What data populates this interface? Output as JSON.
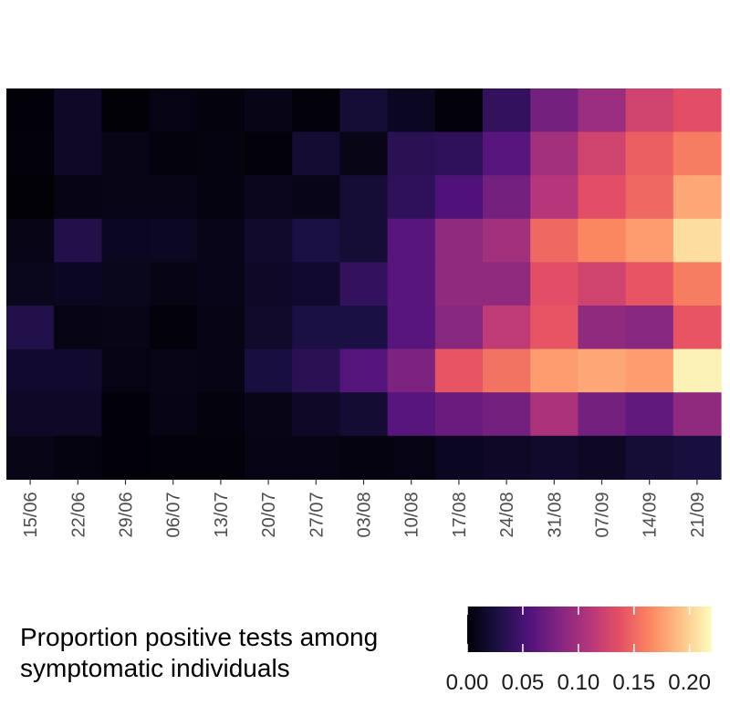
{
  "chart_data": {
    "type": "heatmap",
    "title": "",
    "xlabel": "",
    "ylabel": "",
    "x_categories": [
      "15/06",
      "22/06",
      "29/06",
      "06/07",
      "13/07",
      "20/07",
      "27/07",
      "03/08",
      "10/08",
      "17/08",
      "24/08",
      "31/08",
      "07/09",
      "14/09",
      "21/09"
    ],
    "rows": 9,
    "values": [
      [
        0.002,
        0.015,
        0.001,
        0.006,
        0.004,
        0.008,
        0.003,
        0.022,
        0.012,
        0.003,
        0.04,
        0.075,
        0.095,
        0.125,
        0.135
      ],
      [
        0.003,
        0.015,
        0.008,
        0.004,
        0.005,
        0.003,
        0.02,
        0.008,
        0.035,
        0.038,
        0.06,
        0.1,
        0.125,
        0.145,
        0.16
      ],
      [
        0.001,
        0.007,
        0.008,
        0.008,
        0.005,
        0.011,
        0.009,
        0.022,
        0.038,
        0.055,
        0.075,
        0.11,
        0.135,
        0.15,
        0.18
      ],
      [
        0.008,
        0.03,
        0.012,
        0.013,
        0.009,
        0.017,
        0.027,
        0.022,
        0.06,
        0.09,
        0.1,
        0.15,
        0.165,
        0.175,
        0.205
      ],
      [
        0.01,
        0.012,
        0.01,
        0.007,
        0.009,
        0.015,
        0.018,
        0.04,
        0.06,
        0.09,
        0.09,
        0.135,
        0.125,
        0.14,
        0.16
      ],
      [
        0.03,
        0.006,
        0.008,
        0.003,
        0.007,
        0.016,
        0.027,
        0.027,
        0.06,
        0.085,
        0.115,
        0.14,
        0.09,
        0.085,
        0.14
      ],
      [
        0.018,
        0.018,
        0.006,
        0.008,
        0.007,
        0.025,
        0.035,
        0.058,
        0.08,
        0.14,
        0.155,
        0.175,
        0.18,
        0.175,
        0.215
      ],
      [
        0.015,
        0.015,
        0.002,
        0.007,
        0.004,
        0.008,
        0.015,
        0.02,
        0.06,
        0.07,
        0.075,
        0.105,
        0.075,
        0.065,
        0.09
      ],
      [
        0.008,
        0.005,
        0.002,
        0.003,
        0.003,
        0.007,
        0.007,
        0.005,
        0.006,
        0.012,
        0.015,
        0.017,
        0.014,
        0.022,
        0.025
      ]
    ],
    "scale": {
      "min": 0,
      "max": 0.22,
      "palette": "magma"
    },
    "legend": {
      "title_lines": [
        "Proportion positive tests among",
        "symptomatic individuals"
      ],
      "ticks": [
        "0.00",
        "0.05",
        "0.10",
        "0.15",
        "0.20"
      ],
      "tick_values": [
        0,
        0.05,
        0.1,
        0.15,
        0.2
      ],
      "placement": "bottom"
    }
  },
  "colors": {
    "magma_stops": [
      "#000004",
      "#1c1044",
      "#4f127b",
      "#812581",
      "#b5367a",
      "#e55064",
      "#fb8761",
      "#fec287",
      "#fcfdbf"
    ],
    "tick_text": "#4d4d4d"
  }
}
